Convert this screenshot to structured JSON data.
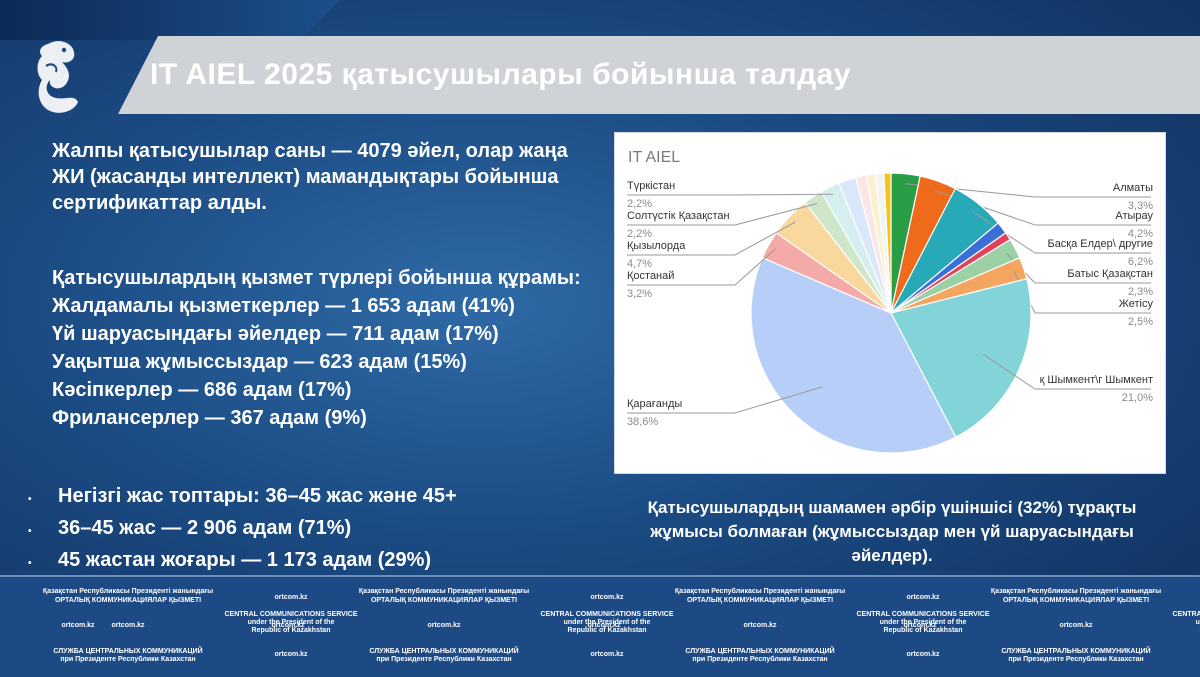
{
  "header": {
    "title": "IT AIEL 2025 қатысушылары бойынша талдау"
  },
  "intro": {
    "text": "Жалпы қатысушылар саны — 4079 әйел, олар жаңа ЖИ (жасанды интеллект) мамандықтары бойынша сертификаттар алды."
  },
  "composition": {
    "heading": "Қатысушылардың қызмет түрлері бойынша құрамы:",
    "items": [
      "Жалдамалы қызметкерлер — 1 653 адам (41%)",
      "Үй шаруасындағы әйелдер — 711 адам (17%)",
      "Уақытша жұмыссыздар — 623 адам (15%)",
      "Кәсіпкерлер — 686 адам (17%)",
      "Фрилансерлер — 367 адам (9%)"
    ]
  },
  "ages": {
    "items": [
      "Негізгі жас топтары: 36–45 жас және 45+",
      "36–45 жас — 2 906 адам (71%)",
      "45 жастан жоғары — 1 173 адам (29%)"
    ]
  },
  "chart_data": {
    "type": "pie",
    "title": "IT AIEL",
    "slices": [
      {
        "name": "Алматы",
        "label_value": "3,3%",
        "value": 3.3,
        "color": "#2a9d47"
      },
      {
        "name": "Атырау",
        "label_value": "4,2%",
        "value": 4.2,
        "color": "#f06a1c"
      },
      {
        "name": "Басқа Елдер\\ другие",
        "label_value": "6,2%",
        "value": 6.2,
        "color": "#27a9b7"
      },
      {
        "name": "",
        "label_value": "",
        "value": 1.4,
        "color": "#3b6fd8"
      },
      {
        "name": "",
        "label_value": "",
        "value": 0.9,
        "color": "#e3405a"
      },
      {
        "name": "Батыс Қазақстан",
        "label_value": "2,3%",
        "value": 2.3,
        "color": "#9bd1a5"
      },
      {
        "name": "Жетісу",
        "label_value": "2,5%",
        "value": 2.5,
        "color": "#f4a560"
      },
      {
        "name": "қ Шымкент\\г Шымкент",
        "label_value": "21,0%",
        "value": 21.0,
        "color": "#83d4d8"
      },
      {
        "name": "Қарағанды",
        "label_value": "38,6%",
        "value": 38.6,
        "color": "#b7cff8"
      },
      {
        "name": "Қостанай",
        "label_value": "3,2%",
        "value": 3.2,
        "color": "#f3aaa8"
      },
      {
        "name": "Қызылорда",
        "label_value": "4,7%",
        "value": 4.7,
        "color": "#f8d89c"
      },
      {
        "name": "Солтүстік Қазақстан",
        "label_value": "2,2%",
        "value": 2.2,
        "color": "#cfe6c8"
      },
      {
        "name": "Түркістан",
        "label_value": "2,2%",
        "value": 2.2,
        "color": "#d6eef0"
      },
      {
        "name": "",
        "label_value": "",
        "value": 2.0,
        "color": "#dbe7fb"
      },
      {
        "name": "",
        "label_value": "",
        "value": 1.2,
        "color": "#fbe6e6"
      },
      {
        "name": "",
        "label_value": "",
        "value": 1.0,
        "color": "#fdf0cf"
      },
      {
        "name": "",
        "label_value": "",
        "value": 1.0,
        "color": "#f4f4f4"
      },
      {
        "name": "",
        "label_value": "",
        "value": 0.8,
        "color": "#f7c21a"
      }
    ]
  },
  "note": {
    "text": "Қатысушылардың шамамен әрбір үшіншісі (32%) тұрақты жұмысы болмаған (жұмыссыздар мен үй шаруасындағы әйелдер)."
  },
  "footer": {
    "kz_line1": "Қазақстан Республикасы Президенті жанындағы",
    "kz_line2": "ОРТАЛЫҚ КОММУНИКАЦИЯЛАР ҚЫЗМЕТІ",
    "site": "ortcom.kz",
    "en_line1": "CENTRAL COMMUNICATIONS SERVICE",
    "en_line2": "under the President of the",
    "en_line3": "Republic of Kazakhstan",
    "ru_line1": "СЛУЖБА ЦЕНТРАЛЬНЫХ КОММУНИКАЦИЙ",
    "ru_line2": "при Президенте Республики Казахстан"
  }
}
